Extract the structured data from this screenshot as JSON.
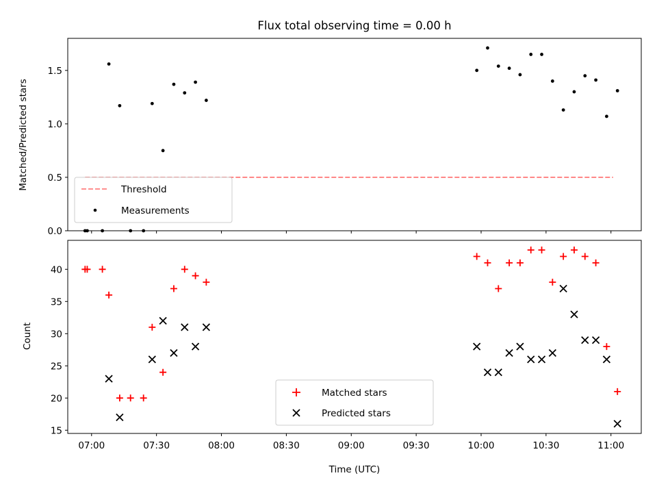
{
  "figure": {
    "title": "Flux total observing time = 0.00 h"
  },
  "chart_data": [
    {
      "type": "scatter",
      "panel": "top",
      "title": "Flux total observing time = 0.00 h",
      "xlabel": "",
      "ylabel": "Matched/Predicted stars",
      "xlim": [
        "06:49",
        "11:14"
      ],
      "ylim": [
        0,
        1.8
      ],
      "yticks": [
        0.0,
        0.5,
        1.0,
        1.5
      ],
      "ytick_labels": [
        "0.0",
        "0.5",
        "1.0",
        "1.5"
      ],
      "xticks": [
        "07:00",
        "07:30",
        "08:00",
        "08:30",
        "09:00",
        "09:30",
        "10:00",
        "10:30",
        "11:00"
      ],
      "show_xtick_labels": false,
      "grid": false,
      "legend": {
        "placement": "lower-left",
        "entries": [
          "Threshold",
          "Measurements"
        ]
      },
      "threshold": {
        "name": "Threshold",
        "value": 0.5,
        "x": [
          "06:57",
          "11:01"
        ],
        "color": "#ff7f7f",
        "style": "dashed"
      },
      "series": [
        {
          "name": "Measurements",
          "marker": "dot",
          "color": "#000000",
          "x": [
            "06:57",
            "06:58",
            "07:05",
            "07:08",
            "07:13",
            "07:18",
            "07:24",
            "07:28",
            "07:33",
            "07:38",
            "07:43",
            "07:48",
            "07:53",
            "09:58",
            "10:03",
            "10:08",
            "10:13",
            "10:18",
            "10:23",
            "10:28",
            "10:33",
            "10:38",
            "10:43",
            "10:48",
            "10:53",
            "10:58",
            "11:03"
          ],
          "y": [
            0.0,
            0.0,
            0.0,
            1.56,
            1.17,
            0.0,
            0.0,
            1.19,
            0.75,
            1.37,
            1.29,
            1.39,
            1.22,
            1.5,
            1.71,
            1.54,
            1.52,
            1.46,
            1.65,
            1.65,
            1.4,
            1.13,
            1.3,
            1.45,
            1.41,
            1.07,
            1.31
          ]
        }
      ]
    },
    {
      "type": "scatter",
      "panel": "bottom",
      "title": "",
      "xlabel": "Time (UTC)",
      "ylabel": "Count",
      "xlim": [
        "06:49",
        "11:14"
      ],
      "ylim": [
        14.5,
        44.5
      ],
      "yticks": [
        15,
        20,
        25,
        30,
        35,
        40
      ],
      "ytick_labels": [
        "15",
        "20",
        "25",
        "30",
        "35",
        "40"
      ],
      "xticks": [
        "07:00",
        "07:30",
        "08:00",
        "08:30",
        "09:00",
        "09:30",
        "10:00",
        "10:30",
        "11:00"
      ],
      "xtick_labels": [
        "07:00",
        "07:30",
        "08:00",
        "08:30",
        "09:00",
        "09:30",
        "10:00",
        "10:30",
        "11:00"
      ],
      "grid": false,
      "legend": {
        "placement": "lower-center",
        "entries": [
          "Matched stars",
          "Predicted stars"
        ]
      },
      "series": [
        {
          "name": "Matched stars",
          "marker": "plus",
          "color": "#ff0000",
          "x": [
            "06:57",
            "06:58",
            "07:05",
            "07:08",
            "07:13",
            "07:18",
            "07:24",
            "07:28",
            "07:33",
            "07:38",
            "07:43",
            "07:48",
            "07:53",
            "09:58",
            "10:03",
            "10:08",
            "10:13",
            "10:18",
            "10:23",
            "10:28",
            "10:33",
            "10:38",
            "10:43",
            "10:48",
            "10:53",
            "10:58",
            "11:03"
          ],
          "y": [
            40,
            40,
            40,
            36,
            20,
            20,
            20,
            31,
            24,
            37,
            40,
            39,
            38,
            42,
            41,
            37,
            41,
            41,
            43,
            43,
            38,
            42,
            43,
            42,
            41,
            28,
            21
          ]
        },
        {
          "name": "Predicted stars",
          "marker": "x",
          "color": "#000000",
          "x": [
            "07:08",
            "07:13",
            "07:28",
            "07:33",
            "07:38",
            "07:43",
            "07:48",
            "07:53",
            "09:58",
            "10:03",
            "10:08",
            "10:13",
            "10:18",
            "10:23",
            "10:28",
            "10:33",
            "10:38",
            "10:43",
            "10:48",
            "10:53",
            "10:58",
            "11:03"
          ],
          "y": [
            23,
            17,
            26,
            32,
            27,
            31,
            28,
            31,
            28,
            24,
            24,
            27,
            28,
            26,
            26,
            27,
            37,
            33,
            29,
            29,
            26,
            16
          ]
        }
      ]
    }
  ]
}
